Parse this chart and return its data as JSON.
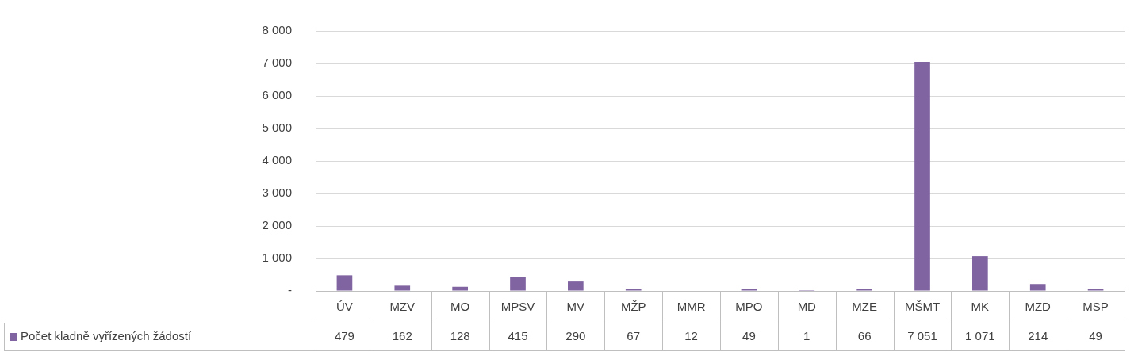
{
  "chart_data": {
    "type": "bar",
    "categories": [
      "ÚV",
      "MZV",
      "MO",
      "MPSV",
      "MV",
      "MŽP",
      "MMR",
      "MPO",
      "MD",
      "MZE",
      "MŠMT",
      "MK",
      "MZD",
      "MSP"
    ],
    "series": [
      {
        "name": "Počet kladně vyřízených žádostí",
        "color": "#8064a2",
        "values": [
          479,
          162,
          128,
          415,
          290,
          67,
          12,
          49,
          1,
          66,
          7051,
          1071,
          214,
          49
        ],
        "value_labels": [
          "479",
          "162",
          "128",
          "415",
          "290",
          "67",
          "12",
          "49",
          "1",
          "66",
          "7 051",
          "1 071",
          "214",
          "49"
        ]
      }
    ],
    "ylim": [
      0,
      8000
    ],
    "yticks": [
      {
        "value": 0,
        "label": "-"
      },
      {
        "value": 1000,
        "label": "1 000"
      },
      {
        "value": 2000,
        "label": "2 000"
      },
      {
        "value": 3000,
        "label": "3 000"
      },
      {
        "value": 4000,
        "label": "4 000"
      },
      {
        "value": 5000,
        "label": "5 000"
      },
      {
        "value": 6000,
        "label": "6 000"
      },
      {
        "value": 7000,
        "label": "7 000"
      },
      {
        "value": 8000,
        "label": "8 000"
      }
    ],
    "grid": "y",
    "legend": "bottom"
  }
}
